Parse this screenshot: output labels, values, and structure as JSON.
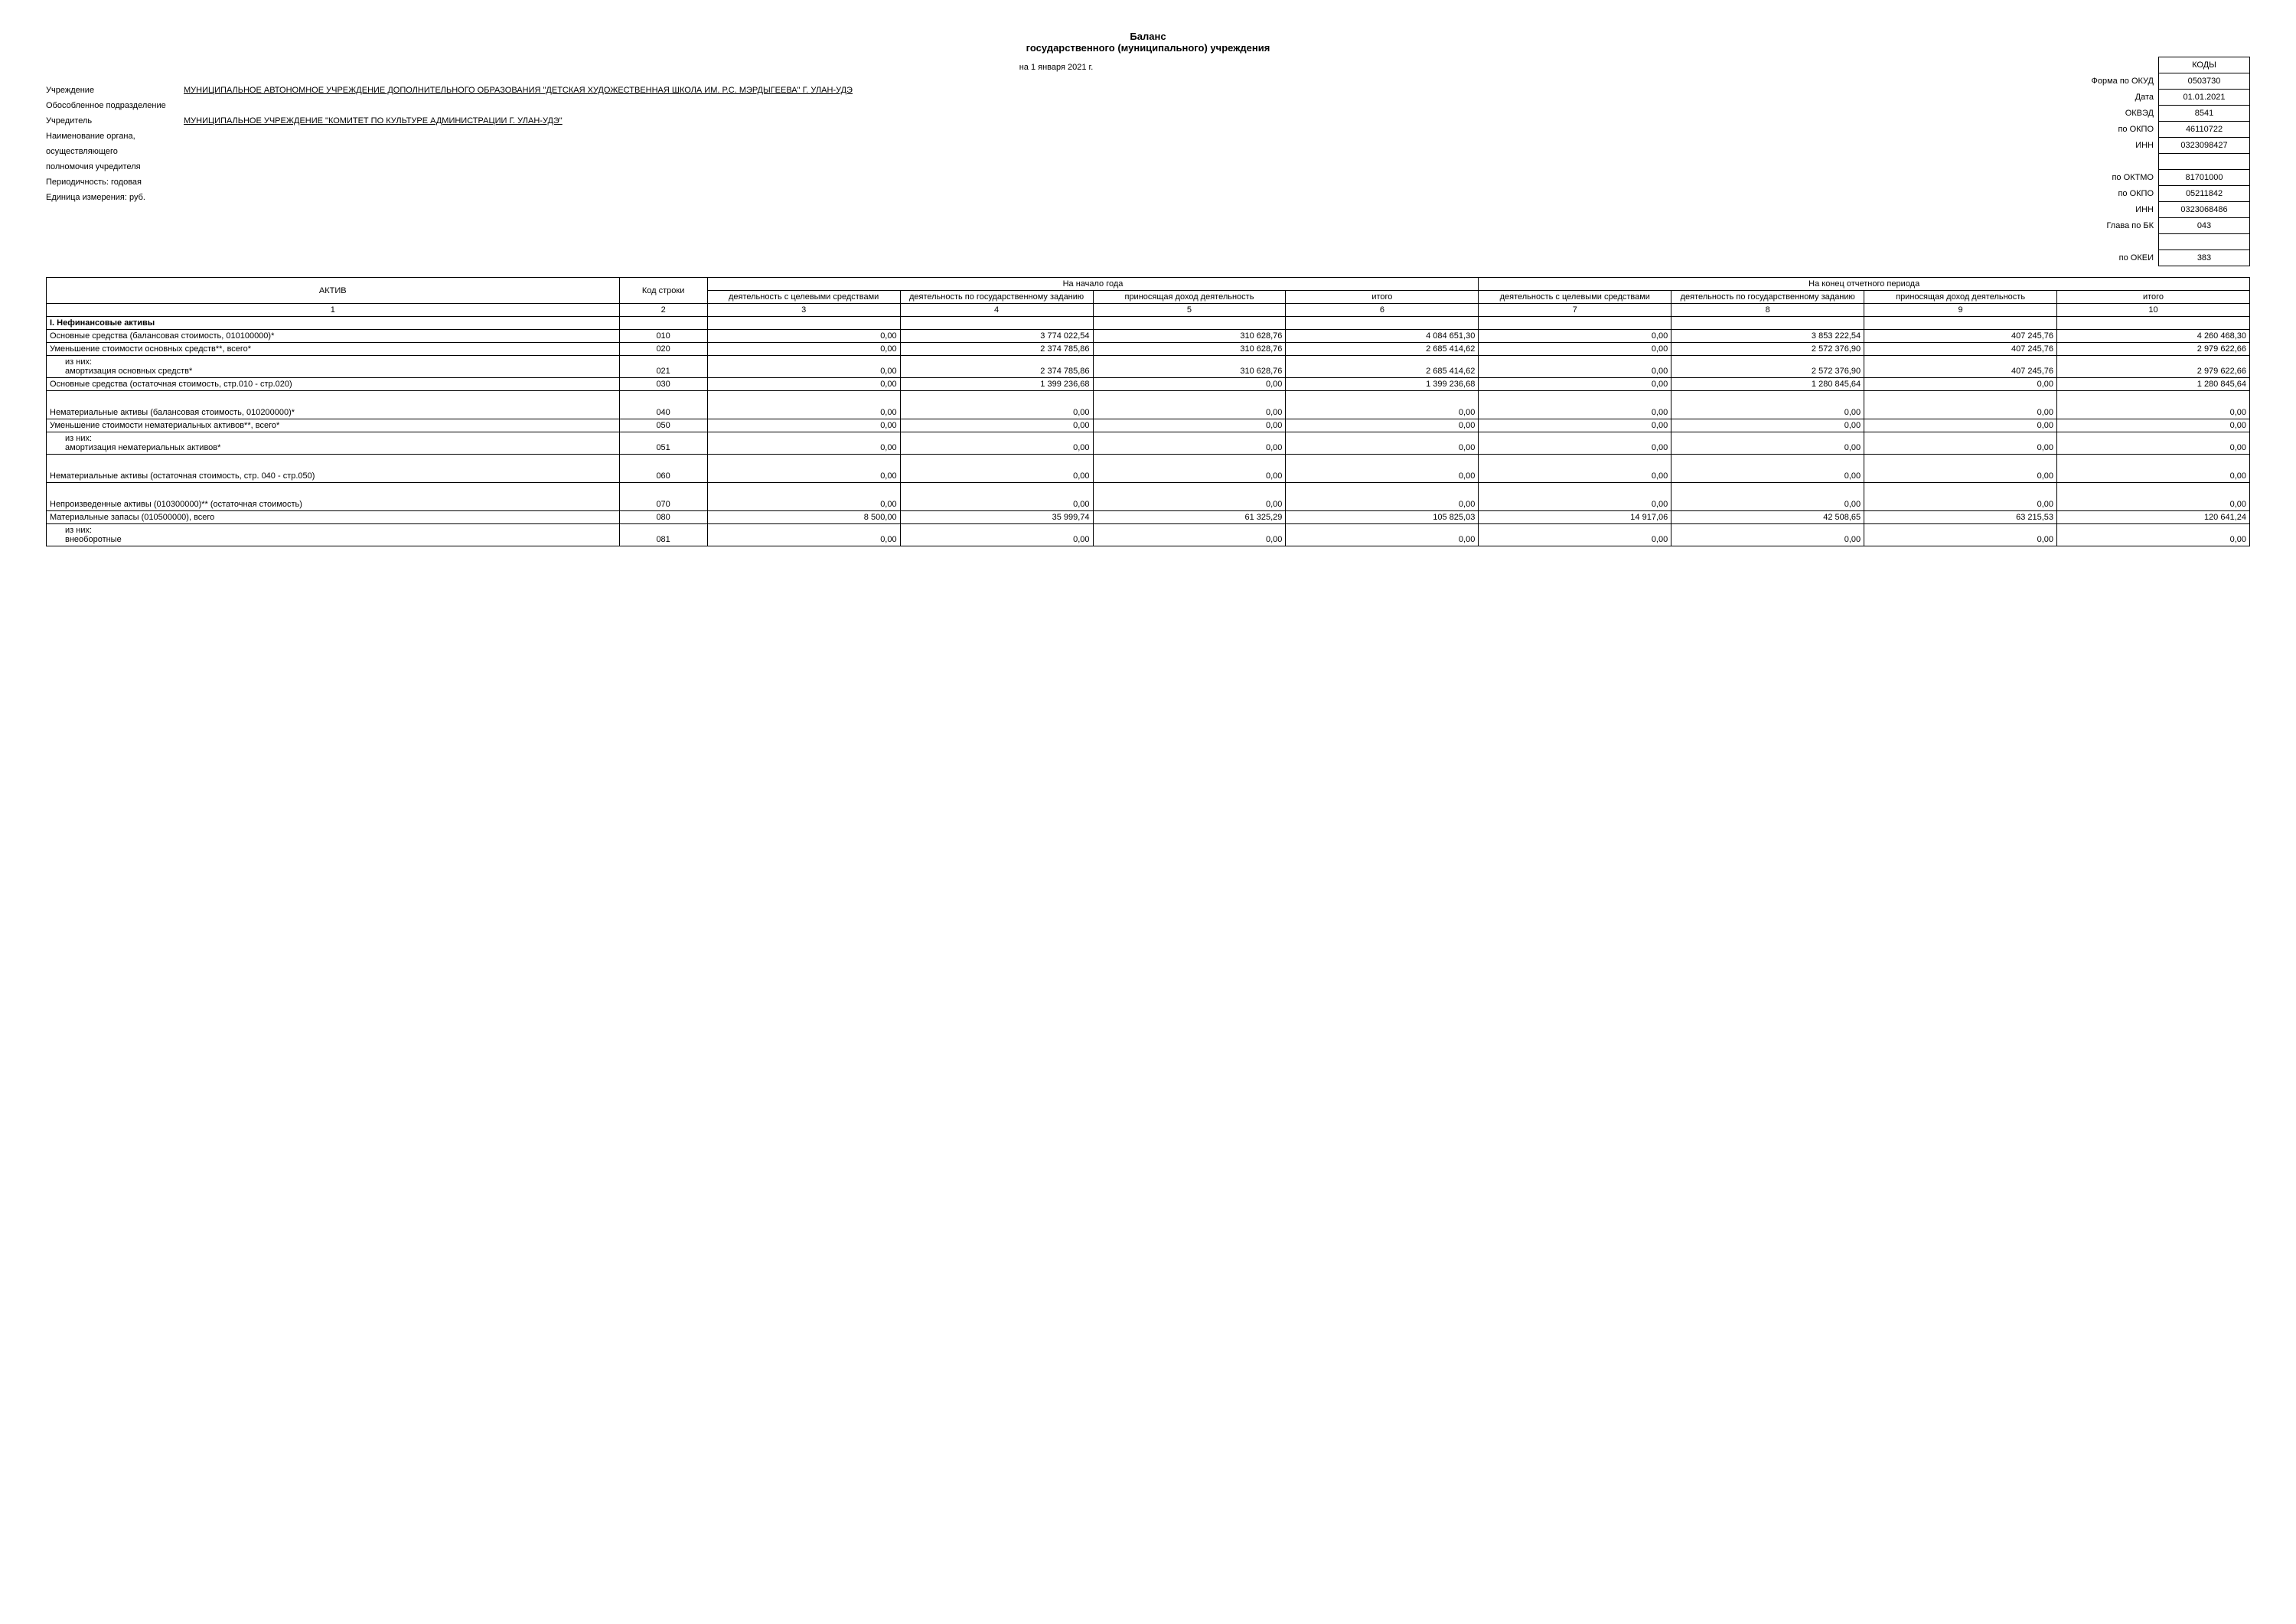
{
  "title": {
    "line1": "Баланс",
    "line2": "государственного (муниципального) учреждения"
  },
  "date_line": "на 1 января 2021 г.",
  "header_labels": {
    "institution": "Учреждение",
    "subdivision": "Обособленное подразделение",
    "founder": "Учредитель",
    "organ1": "Наименование органа,",
    "organ2": "осуществляющего",
    "organ3": "полномочия учредителя",
    "periodicity": "Периодичность: годовая",
    "unit": "Единица измерения: руб."
  },
  "header_values": {
    "institution": "МУНИЦИПАЛЬНОЕ АВТОНОМНОЕ УЧРЕЖДЕНИЕ ДОПОЛНИТЕЛЬНОГО ОБРАЗОВАНИЯ \"ДЕТСКАЯ ХУДОЖЕСТВЕННАЯ ШКОЛА ИМ. Р.С. МЭРДЫГЕЕВА\" Г. УЛАН-УДЭ",
    "founder": "МУНИЦИПАЛЬНОЕ УЧРЕЖДЕНИЕ \"КОМИТЕТ ПО КУЛЬТУРЕ АДМИНИСТРАЦИИ Г. УЛАН-УДЭ\""
  },
  "codes": {
    "header": "КОДЫ",
    "rows": [
      {
        "label": "Форма по ОКУД",
        "value": "0503730"
      },
      {
        "label": "Дата",
        "value": "01.01.2021"
      },
      {
        "label": "ОКВЭД",
        "value": "8541"
      },
      {
        "label": "по ОКПО",
        "value": "46110722"
      },
      {
        "label": "ИНН",
        "value": "0323098427"
      },
      {
        "label": "",
        "value": ""
      },
      {
        "label": "по ОКТМО",
        "value": "81701000"
      },
      {
        "label": "по ОКПО",
        "value": "05211842"
      },
      {
        "label": "ИНН",
        "value": "0323068486"
      },
      {
        "label": "Глава по БК",
        "value": "043"
      },
      {
        "label": "",
        "value": ""
      },
      {
        "label": "по ОКЕИ",
        "value": "383"
      }
    ]
  },
  "table": {
    "head": {
      "asset": "АКТИВ",
      "code": "Код строки",
      "period_begin": "На начало года",
      "period_end": "На конец отчетного периода",
      "col3": "деятельность с целевыми средствами",
      "col4": "деятельность по государственному заданию",
      "col5": "приносящая доход деятельность",
      "col6": "итого",
      "col7": "деятельность с целевыми средствами",
      "col8": "деятельность по государственному заданию",
      "col9": "приносящая доход деятельность",
      "col10": "итого"
    },
    "numrow": [
      "1",
      "2",
      "3",
      "4",
      "5",
      "6",
      "7",
      "8",
      "9",
      "10"
    ],
    "section1": "I. Нефинансовые активы",
    "rows": [
      {
        "name": "Основные средства (балансовая стоимость, 010100000)*",
        "code": "010",
        "v": [
          "0,00",
          "3 774 022,54",
          "310 628,76",
          "4 084 651,30",
          "0,00",
          "3 853 222,54",
          "407 245,76",
          "4 260 468,30"
        ]
      },
      {
        "name": "Уменьшение стоимости основных средств**, всего*",
        "code": "020",
        "v": [
          "0,00",
          "2 374 785,86",
          "310 628,76",
          "2 685 414,62",
          "0,00",
          "2 572 376,90",
          "407 245,76",
          "2 979 622,66"
        ]
      },
      {
        "name": "из них:\nамортизация основных средств*",
        "code": "021",
        "indent": true,
        "v": [
          "0,00",
          "2 374 785,86",
          "310 628,76",
          "2 685 414,62",
          "0,00",
          "2 572 376,90",
          "407 245,76",
          "2 979 622,66"
        ]
      },
      {
        "name": "Основные средства (остаточная стоимость, стр.010 - стр.020)",
        "code": "030",
        "v": [
          "0,00",
          "1 399 236,68",
          "0,00",
          "1 399 236,68",
          "0,00",
          "1 280 845,64",
          "0,00",
          "1 280 845,64"
        ]
      },
      {
        "name": "Нематериальные активы (балансовая стоимость, 010200000)*",
        "code": "040",
        "tall": true,
        "v": [
          "0,00",
          "0,00",
          "0,00",
          "0,00",
          "0,00",
          "0,00",
          "0,00",
          "0,00"
        ]
      },
      {
        "name": "Уменьшение стоимости нематериальных активов**, всего*",
        "code": "050",
        "v": [
          "0,00",
          "0,00",
          "0,00",
          "0,00",
          "0,00",
          "0,00",
          "0,00",
          "0,00"
        ]
      },
      {
        "name": "из них:\nамортизация нематериальных активов*",
        "code": "051",
        "indent": true,
        "v": [
          "0,00",
          "0,00",
          "0,00",
          "0,00",
          "0,00",
          "0,00",
          "0,00",
          "0,00"
        ]
      },
      {
        "name": "Нематериальные активы (остаточная стоимость, стр. 040 - стр.050)",
        "code": "060",
        "tall": true,
        "v": [
          "0,00",
          "0,00",
          "0,00",
          "0,00",
          "0,00",
          "0,00",
          "0,00",
          "0,00"
        ]
      },
      {
        "name": "Непроизведенные активы (010300000)** (остаточная стоимость)",
        "code": "070",
        "tall": true,
        "v": [
          "0,00",
          "0,00",
          "0,00",
          "0,00",
          "0,00",
          "0,00",
          "0,00",
          "0,00"
        ]
      },
      {
        "name": "Материальные запасы (010500000), всего",
        "code": "080",
        "v": [
          "8 500,00",
          "35 999,74",
          "61 325,29",
          "105 825,03",
          "14 917,06",
          "42 508,65",
          "63 215,53",
          "120 641,24"
        ]
      },
      {
        "name": "из них:\nвнеоборотные",
        "code": "081",
        "indent": true,
        "v": [
          "0,00",
          "0,00",
          "0,00",
          "0,00",
          "0,00",
          "0,00",
          "0,00",
          "0,00"
        ]
      }
    ]
  }
}
